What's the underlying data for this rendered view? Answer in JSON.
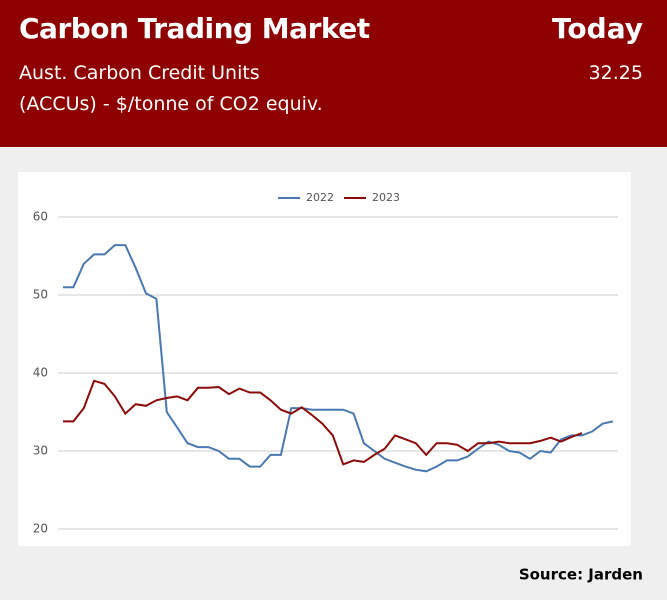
{
  "header": {
    "title": "Carbon Trading Market",
    "today_label": "Today",
    "subtitle_lines": [
      "Aust. Carbon Credit Units",
      "(ACCUs) - $/tonne of CO2 equiv."
    ],
    "today_value": "32.25"
  },
  "chart_data": {
    "type": "line",
    "series": [
      {
        "name": "2022",
        "color": "#4a78b0",
        "values": [
          51,
          51,
          54,
          55.2,
          55.2,
          56.4,
          56.4,
          53.5,
          50.2,
          49.5,
          35,
          33,
          31,
          30.5,
          30.5,
          30,
          29,
          29,
          28,
          28,
          29.5,
          29.5,
          35.5,
          35.5,
          35.3,
          35.3,
          35.3,
          35.3,
          34.8,
          31,
          30,
          29,
          28.5,
          28,
          27.6,
          27.4,
          28,
          28.8,
          28.8,
          29.3,
          30.3,
          31.2,
          30.8,
          30,
          29.8,
          29,
          30,
          29.8,
          31.5,
          32,
          32,
          32.5,
          33.5,
          33.8
        ]
      },
      {
        "name": "2023",
        "color": "#8b0a0a",
        "values": [
          33.8,
          33.8,
          35.5,
          39,
          38.6,
          37,
          34.8,
          36,
          35.8,
          36.5,
          36.8,
          37,
          36.5,
          38.1,
          38.1,
          38.2,
          37.3,
          38,
          37.5,
          37.5,
          36.5,
          35.3,
          34.8,
          35.6,
          34.6,
          33.5,
          32,
          28.3,
          28.8,
          28.6,
          29.5,
          30.3,
          32,
          31.5,
          31,
          29.5,
          31,
          31,
          30.8,
          30,
          31,
          31,
          31.2,
          31,
          31,
          31,
          31.3,
          31.7,
          31.2,
          31.8,
          32.3
        ]
      }
    ],
    "ylim": [
      20,
      60
    ],
    "yticks": [
      20,
      30,
      40,
      50,
      60
    ],
    "grid": true,
    "legend": "top"
  },
  "footer": {
    "source": "Source: Jarden"
  }
}
